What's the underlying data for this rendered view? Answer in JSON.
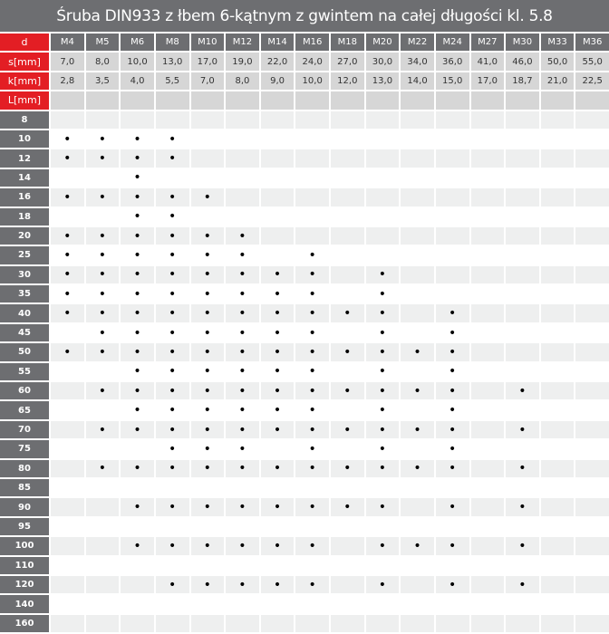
{
  "title": "Śruba DIN933 z łbem 6-kątnym z gwintem na całej długości kl. 5.8",
  "colors": {
    "header_bg": "#6d6e71",
    "label_red": "#e31e24",
    "spec_bg": "#d6d6d6",
    "row_gray": "#eeefef"
  },
  "mark_symbol": "•",
  "header": {
    "d_label": "d",
    "sizes": [
      "M4",
      "M5",
      "M6",
      "M8",
      "M10",
      "M12",
      "M14",
      "M16",
      "M18",
      "M20",
      "M22",
      "M24",
      "M27",
      "M30",
      "M33",
      "M36"
    ]
  },
  "specs": [
    {
      "label": "s[mm]",
      "values": [
        "7,0",
        "8,0",
        "10,0",
        "13,0",
        "17,0",
        "19,0",
        "22,0",
        "24,0",
        "27,0",
        "30,0",
        "34,0",
        "36,0",
        "41,0",
        "46,0",
        "50,0",
        "55,0"
      ]
    },
    {
      "label": "k[mm]",
      "values": [
        "2,8",
        "3,5",
        "4,0",
        "5,5",
        "7,0",
        "8,0",
        "9,0",
        "10,0",
        "12,0",
        "13,0",
        "14,0",
        "15,0",
        "17,0",
        "18,7",
        "21,0",
        "22,5"
      ]
    }
  ],
  "length_label": "L[mm]",
  "rows": [
    {
      "L": "8",
      "available": []
    },
    {
      "L": "10",
      "available": [
        "M4",
        "M5",
        "M6",
        "M8"
      ]
    },
    {
      "L": "12",
      "available": [
        "M4",
        "M5",
        "M6",
        "M8"
      ]
    },
    {
      "L": "14",
      "available": [
        "M6"
      ]
    },
    {
      "L": "16",
      "available": [
        "M4",
        "M5",
        "M6",
        "M8",
        "M10"
      ]
    },
    {
      "L": "18",
      "available": [
        "M6",
        "M8"
      ]
    },
    {
      "L": "20",
      "available": [
        "M4",
        "M5",
        "M6",
        "M8",
        "M10",
        "M12"
      ]
    },
    {
      "L": "25",
      "available": [
        "M4",
        "M5",
        "M6",
        "M8",
        "M10",
        "M12",
        "M16"
      ]
    },
    {
      "L": "30",
      "available": [
        "M4",
        "M5",
        "M6",
        "M8",
        "M10",
        "M12",
        "M14",
        "M16",
        "M20"
      ]
    },
    {
      "L": "35",
      "available": [
        "M4",
        "M5",
        "M6",
        "M8",
        "M10",
        "M12",
        "M14",
        "M16",
        "M20"
      ]
    },
    {
      "L": "40",
      "available": [
        "M4",
        "M5",
        "M6",
        "M8",
        "M10",
        "M12",
        "M14",
        "M16",
        "M18",
        "M20",
        "M24"
      ]
    },
    {
      "L": "45",
      "available": [
        "M5",
        "M6",
        "M8",
        "M10",
        "M12",
        "M14",
        "M16",
        "M20",
        "M24"
      ]
    },
    {
      "L": "50",
      "available": [
        "M4",
        "M5",
        "M6",
        "M8",
        "M10",
        "M12",
        "M14",
        "M16",
        "M18",
        "M20",
        "M22",
        "M24"
      ]
    },
    {
      "L": "55",
      "available": [
        "M6",
        "M8",
        "M10",
        "M12",
        "M14",
        "M16",
        "M20",
        "M24"
      ]
    },
    {
      "L": "60",
      "available": [
        "M5",
        "M6",
        "M8",
        "M10",
        "M12",
        "M14",
        "M16",
        "M18",
        "M20",
        "M22",
        "M24",
        "M30"
      ]
    },
    {
      "L": "65",
      "available": [
        "M6",
        "M8",
        "M10",
        "M12",
        "M14",
        "M16",
        "M20",
        "M24"
      ]
    },
    {
      "L": "70",
      "available": [
        "M5",
        "M6",
        "M8",
        "M10",
        "M12",
        "M14",
        "M16",
        "M18",
        "M20",
        "M22",
        "M24",
        "M30"
      ]
    },
    {
      "L": "75",
      "available": [
        "M8",
        "M10",
        "M12",
        "M16",
        "M20",
        "M24"
      ]
    },
    {
      "L": "80",
      "available": [
        "M5",
        "M6",
        "M8",
        "M10",
        "M12",
        "M14",
        "M16",
        "M18",
        "M20",
        "M22",
        "M24",
        "M30"
      ]
    },
    {
      "L": "85",
      "available": []
    },
    {
      "L": "90",
      "available": [
        "M6",
        "M8",
        "M10",
        "M12",
        "M14",
        "M16",
        "M18",
        "M20",
        "M24",
        "M30"
      ]
    },
    {
      "L": "95",
      "available": []
    },
    {
      "L": "100",
      "available": [
        "M6",
        "M8",
        "M10",
        "M12",
        "M14",
        "M16",
        "M20",
        "M22",
        "M24",
        "M30"
      ]
    },
    {
      "L": "110",
      "available": []
    },
    {
      "L": "120",
      "available": [
        "M8",
        "M10",
        "M12",
        "M14",
        "M16",
        "M20",
        "M24",
        "M30"
      ]
    },
    {
      "L": "140",
      "available": []
    },
    {
      "L": "160",
      "available": []
    }
  ]
}
